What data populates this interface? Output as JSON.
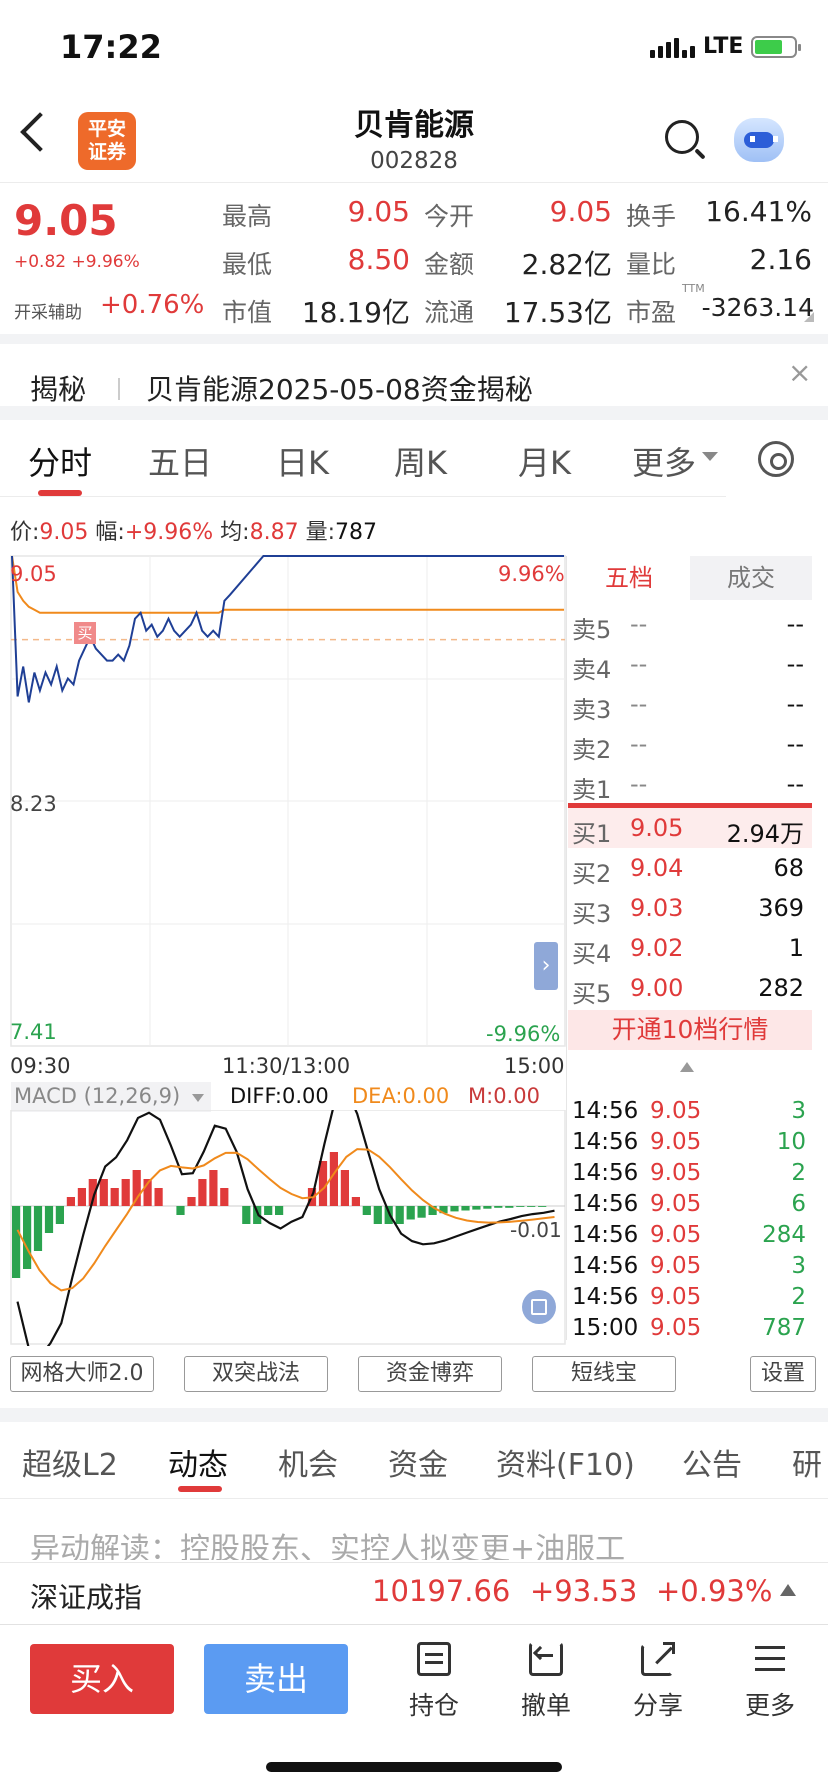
{
  "status_bar": {
    "time": "17:22",
    "network": "LTE"
  },
  "header": {
    "logo_line1": "平安",
    "logo_line2": "证券",
    "name": "贝肯能源",
    "code": "002828"
  },
  "quote": {
    "price": "9.05",
    "change": "+0.82 +9.96%",
    "aux_label": "开采辅助",
    "aux_value": "+0.76%",
    "fields": [
      {
        "label": "最高",
        "value": "9.05"
      },
      {
        "label": "今开",
        "value": "9.05"
      },
      {
        "label": "换手",
        "value": "16.41%"
      },
      {
        "label": "最低",
        "value": "8.50"
      },
      {
        "label": "金额",
        "value": "2.82亿"
      },
      {
        "label": "量比",
        "value": "2.16"
      },
      {
        "label": "市值",
        "value": "18.19亿"
      },
      {
        "label": "流通",
        "value": "17.53亿"
      },
      {
        "label": "市盈",
        "value": "-3263.14"
      }
    ],
    "ttm": "TTM"
  },
  "reveal": {
    "title": "揭秘",
    "text": "贝肯能源2025-05-08资金揭秘"
  },
  "chart_tabs": [
    "分时",
    "五日",
    "日K",
    "周K",
    "月K",
    "更多"
  ],
  "info_line": {
    "price_label": "价:",
    "price": "9.05",
    "amp_label": "幅:",
    "amp": "+9.96%",
    "avg_label": "均:",
    "avg": "8.87",
    "vol_label": "量:",
    "vol": "787"
  },
  "chart_data": [
    {
      "type": "line",
      "x_ticks": [
        "09:30",
        "11:30/13:00",
        "15:00"
      ],
      "y_left": [
        "9.05",
        "8.23",
        "7.41"
      ],
      "y_right": [
        "9.96%",
        "-9.96%"
      ],
      "ylim": [
        7.41,
        9.05
      ],
      "buy_marker": "买",
      "series": [
        {
          "values": [
            9.05,
            8.58,
            8.68,
            8.56,
            8.66,
            8.6,
            8.66,
            8.62,
            8.68,
            8.6,
            8.64,
            8.62,
            8.7,
            8.74,
            8.78,
            8.74,
            8.72,
            8.7,
            8.7,
            8.72,
            8.7,
            8.75,
            8.84,
            8.86,
            8.8,
            8.82,
            8.78,
            8.8,
            8.84,
            8.8,
            8.78,
            8.8,
            8.82,
            8.86,
            8.8,
            8.78,
            8.8,
            8.78,
            8.9,
            8.92,
            9.05,
            9.05,
            9.05,
            9.05,
            9.05,
            9.05,
            9.05,
            9.05,
            9.05,
            9.05
          ]
        },
        {
          "values": [
            9.05,
            8.93,
            8.9,
            8.88,
            8.87,
            8.86,
            8.86,
            8.86,
            8.86,
            8.86,
            8.86,
            8.86,
            8.86,
            8.86,
            8.86,
            8.86,
            8.86,
            8.86,
            8.86,
            8.86,
            8.86,
            8.86,
            8.86,
            8.86,
            8.86,
            8.86,
            8.86,
            8.86,
            8.86,
            8.86,
            8.86,
            8.86,
            8.86,
            8.86,
            8.86,
            8.86,
            8.86,
            8.86,
            8.87,
            8.87,
            8.87,
            8.87,
            8.87,
            8.87,
            8.87,
            8.87,
            8.87,
            8.87,
            8.87,
            8.87
          ]
        }
      ],
      "reference": 8.23
    },
    {
      "type": "bar",
      "title": "MACD (12,26,9)",
      "diff": "DIFF:0.00",
      "dea": "DEA:0.00",
      "m": "M:0.00",
      "right_label": "-0.01",
      "histogram": [
        -0.08,
        -0.07,
        -0.05,
        -0.03,
        -0.02,
        0.01,
        0.02,
        0.03,
        0.03,
        0.02,
        0.03,
        0.04,
        0.03,
        0.02,
        0.0,
        -0.01,
        0.01,
        0.03,
        0.04,
        0.02,
        0.0,
        -0.02,
        -0.02,
        -0.01,
        -0.01,
        0.0,
        0.0,
        0.02,
        0.05,
        0.06,
        0.04,
        0.01,
        -0.01,
        -0.02,
        -0.02,
        -0.02,
        -0.015,
        -0.013,
        -0.01,
        -0.008,
        -0.006,
        -0.005,
        -0.004,
        -0.003,
        -0.002,
        -0.002,
        -0.001,
        -0.001,
        -0.001,
        0.0
      ]
    }
  ],
  "order_book": {
    "tab_five": "五档",
    "tab_deal": "成交",
    "sells": [
      {
        "label": "卖5",
        "price": "--",
        "qty": "--"
      },
      {
        "label": "卖4",
        "price": "--",
        "qty": "--"
      },
      {
        "label": "卖3",
        "price": "--",
        "qty": "--"
      },
      {
        "label": "卖2",
        "price": "--",
        "qty": "--"
      },
      {
        "label": "卖1",
        "price": "--",
        "qty": "--"
      }
    ],
    "buys": [
      {
        "label": "买1",
        "price": "9.05",
        "qty": "2.94万"
      },
      {
        "label": "买2",
        "price": "9.04",
        "qty": "68"
      },
      {
        "label": "买3",
        "price": "9.03",
        "qty": "369"
      },
      {
        "label": "买4",
        "price": "9.02",
        "qty": "1"
      },
      {
        "label": "买5",
        "price": "9.00",
        "qty": "282"
      }
    ],
    "open_more": "开通10档行情",
    "ticks": [
      {
        "time": "14:56",
        "price": "9.05",
        "qty": "3"
      },
      {
        "time": "14:56",
        "price": "9.05",
        "qty": "10"
      },
      {
        "time": "14:56",
        "price": "9.05",
        "qty": "2"
      },
      {
        "time": "14:56",
        "price": "9.05",
        "qty": "6"
      },
      {
        "time": "14:56",
        "price": "9.05",
        "qty": "284"
      },
      {
        "time": "14:56",
        "price": "9.05",
        "qty": "3"
      },
      {
        "time": "14:56",
        "price": "9.05",
        "qty": "2"
      },
      {
        "time": "15:00",
        "price": "9.05",
        "qty": "787"
      }
    ]
  },
  "tools": [
    "网格大师2.0",
    "双突战法",
    "资金博弈",
    "短线宝",
    "设置"
  ],
  "news_tabs": [
    "超级L2",
    "动态",
    "机会",
    "资金",
    "资料(F10)",
    "公告",
    "研"
  ],
  "news_line": "异动解读：控股股东、实控人拟变更+油服工",
  "index": {
    "name": "深证成指",
    "value": "10197.66",
    "change": "+93.53",
    "pct": "+0.93%"
  },
  "bottom": {
    "buy": "买入",
    "sell": "卖出",
    "items": [
      "持仓",
      "撤单",
      "分享",
      "更多"
    ]
  },
  "colors": {
    "up": "#e03a3a",
    "down": "#2ba34f",
    "price_line": "#1f3f95",
    "avg_line": "#f08a1c",
    "sell_button": "#5b9bf2"
  }
}
